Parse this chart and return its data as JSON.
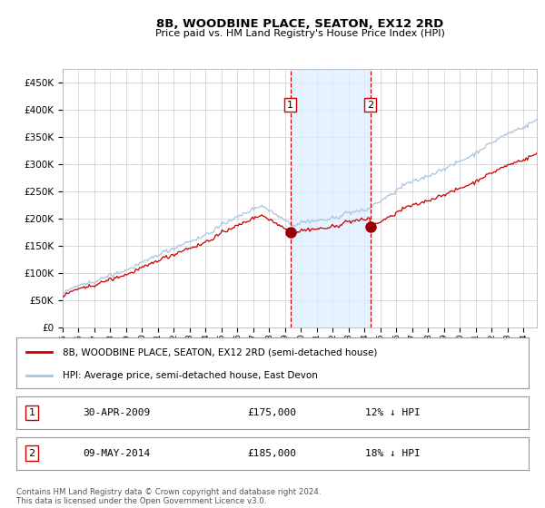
{
  "title": "8B, WOODBINE PLACE, SEATON, EX12 2RD",
  "subtitle": "Price paid vs. HM Land Registry's House Price Index (HPI)",
  "hpi_label": "HPI: Average price, semi-detached house, East Devon",
  "property_label": "8B, WOODBINE PLACE, SEATON, EX12 2RD (semi-detached house)",
  "purchase1_date": "30-APR-2009",
  "purchase1_price": 175000,
  "purchase1_pct": "12% ↓ HPI",
  "purchase2_date": "09-MAY-2014",
  "purchase2_price": 185000,
  "purchase2_pct": "18% ↓ HPI",
  "purchase1_year": 2009.33,
  "purchase2_year": 2014.36,
  "hpi_color": "#aac4e0",
  "property_color": "#cc0000",
  "dot_color": "#990000",
  "vline_color": "#cc0000",
  "shade_color": "#ddeeff",
  "grid_color": "#cccccc",
  "bg_color": "#ffffff",
  "ylim": [
    0,
    475000
  ],
  "xlim_start": 1995.0,
  "xlim_end": 2024.83,
  "footer": "Contains HM Land Registry data © Crown copyright and database right 2024.\nThis data is licensed under the Open Government Licence v3.0."
}
